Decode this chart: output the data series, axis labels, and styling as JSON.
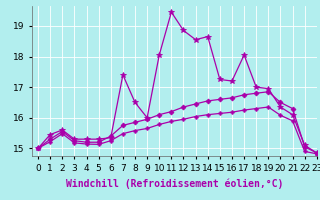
{
  "title": "",
  "xlabel": "Windchill (Refroidissement éolien,°C)",
  "ylabel": "",
  "bg_color": "#b2eeee",
  "line_color": "#aa00aa",
  "xlim": [
    -0.5,
    23
  ],
  "ylim": [
    14.75,
    19.65
  ],
  "yticks": [
    15,
    16,
    17,
    18,
    19
  ],
  "xticks": [
    0,
    1,
    2,
    3,
    4,
    5,
    6,
    7,
    8,
    9,
    10,
    11,
    12,
    13,
    14,
    15,
    16,
    17,
    18,
    19,
    20,
    21,
    22,
    23
  ],
  "series": [
    {
      "x": [
        0,
        1,
        2,
        3,
        4,
        5,
        6,
        7,
        8,
        9,
        10,
        11,
        12,
        13,
        14,
        15,
        16,
        17,
        18,
        19,
        20,
        21,
        22,
        23
      ],
      "y": [
        15.0,
        15.45,
        15.6,
        15.3,
        15.3,
        15.3,
        15.35,
        17.4,
        16.5,
        16.0,
        18.05,
        19.45,
        18.85,
        18.55,
        18.65,
        17.25,
        17.2,
        18.05,
        17.0,
        16.95,
        16.35,
        16.1,
        15.1,
        14.85
      ],
      "marker": "*",
      "markersize": 4,
      "linewidth": 0.9
    },
    {
      "x": [
        0,
        1,
        2,
        3,
        4,
        5,
        6,
        7,
        8,
        9,
        10,
        11,
        12,
        13,
        14,
        15,
        16,
        17,
        18,
        19,
        20,
        21,
        22,
        23
      ],
      "y": [
        15.0,
        15.3,
        15.55,
        15.25,
        15.2,
        15.2,
        15.4,
        15.75,
        15.85,
        15.95,
        16.1,
        16.2,
        16.35,
        16.45,
        16.55,
        16.6,
        16.65,
        16.75,
        16.8,
        16.85,
        16.5,
        16.3,
        15.05,
        14.85
      ],
      "marker": "D",
      "markersize": 2.5,
      "linewidth": 0.9
    },
    {
      "x": [
        0,
        1,
        2,
        3,
        4,
        5,
        6,
        7,
        8,
        9,
        10,
        11,
        12,
        13,
        14,
        15,
        16,
        17,
        18,
        19,
        20,
        21,
        22,
        23
      ],
      "y": [
        15.0,
        15.22,
        15.48,
        15.18,
        15.14,
        15.13,
        15.25,
        15.48,
        15.58,
        15.65,
        15.78,
        15.88,
        15.95,
        16.04,
        16.1,
        16.14,
        16.18,
        16.25,
        16.3,
        16.35,
        16.08,
        15.9,
        14.9,
        14.82
      ],
      "marker": "P",
      "markersize": 2.5,
      "linewidth": 0.9
    }
  ],
  "grid_color": "#ffffff",
  "tick_labelsize": 6.5,
  "xlabel_fontsize": 7
}
